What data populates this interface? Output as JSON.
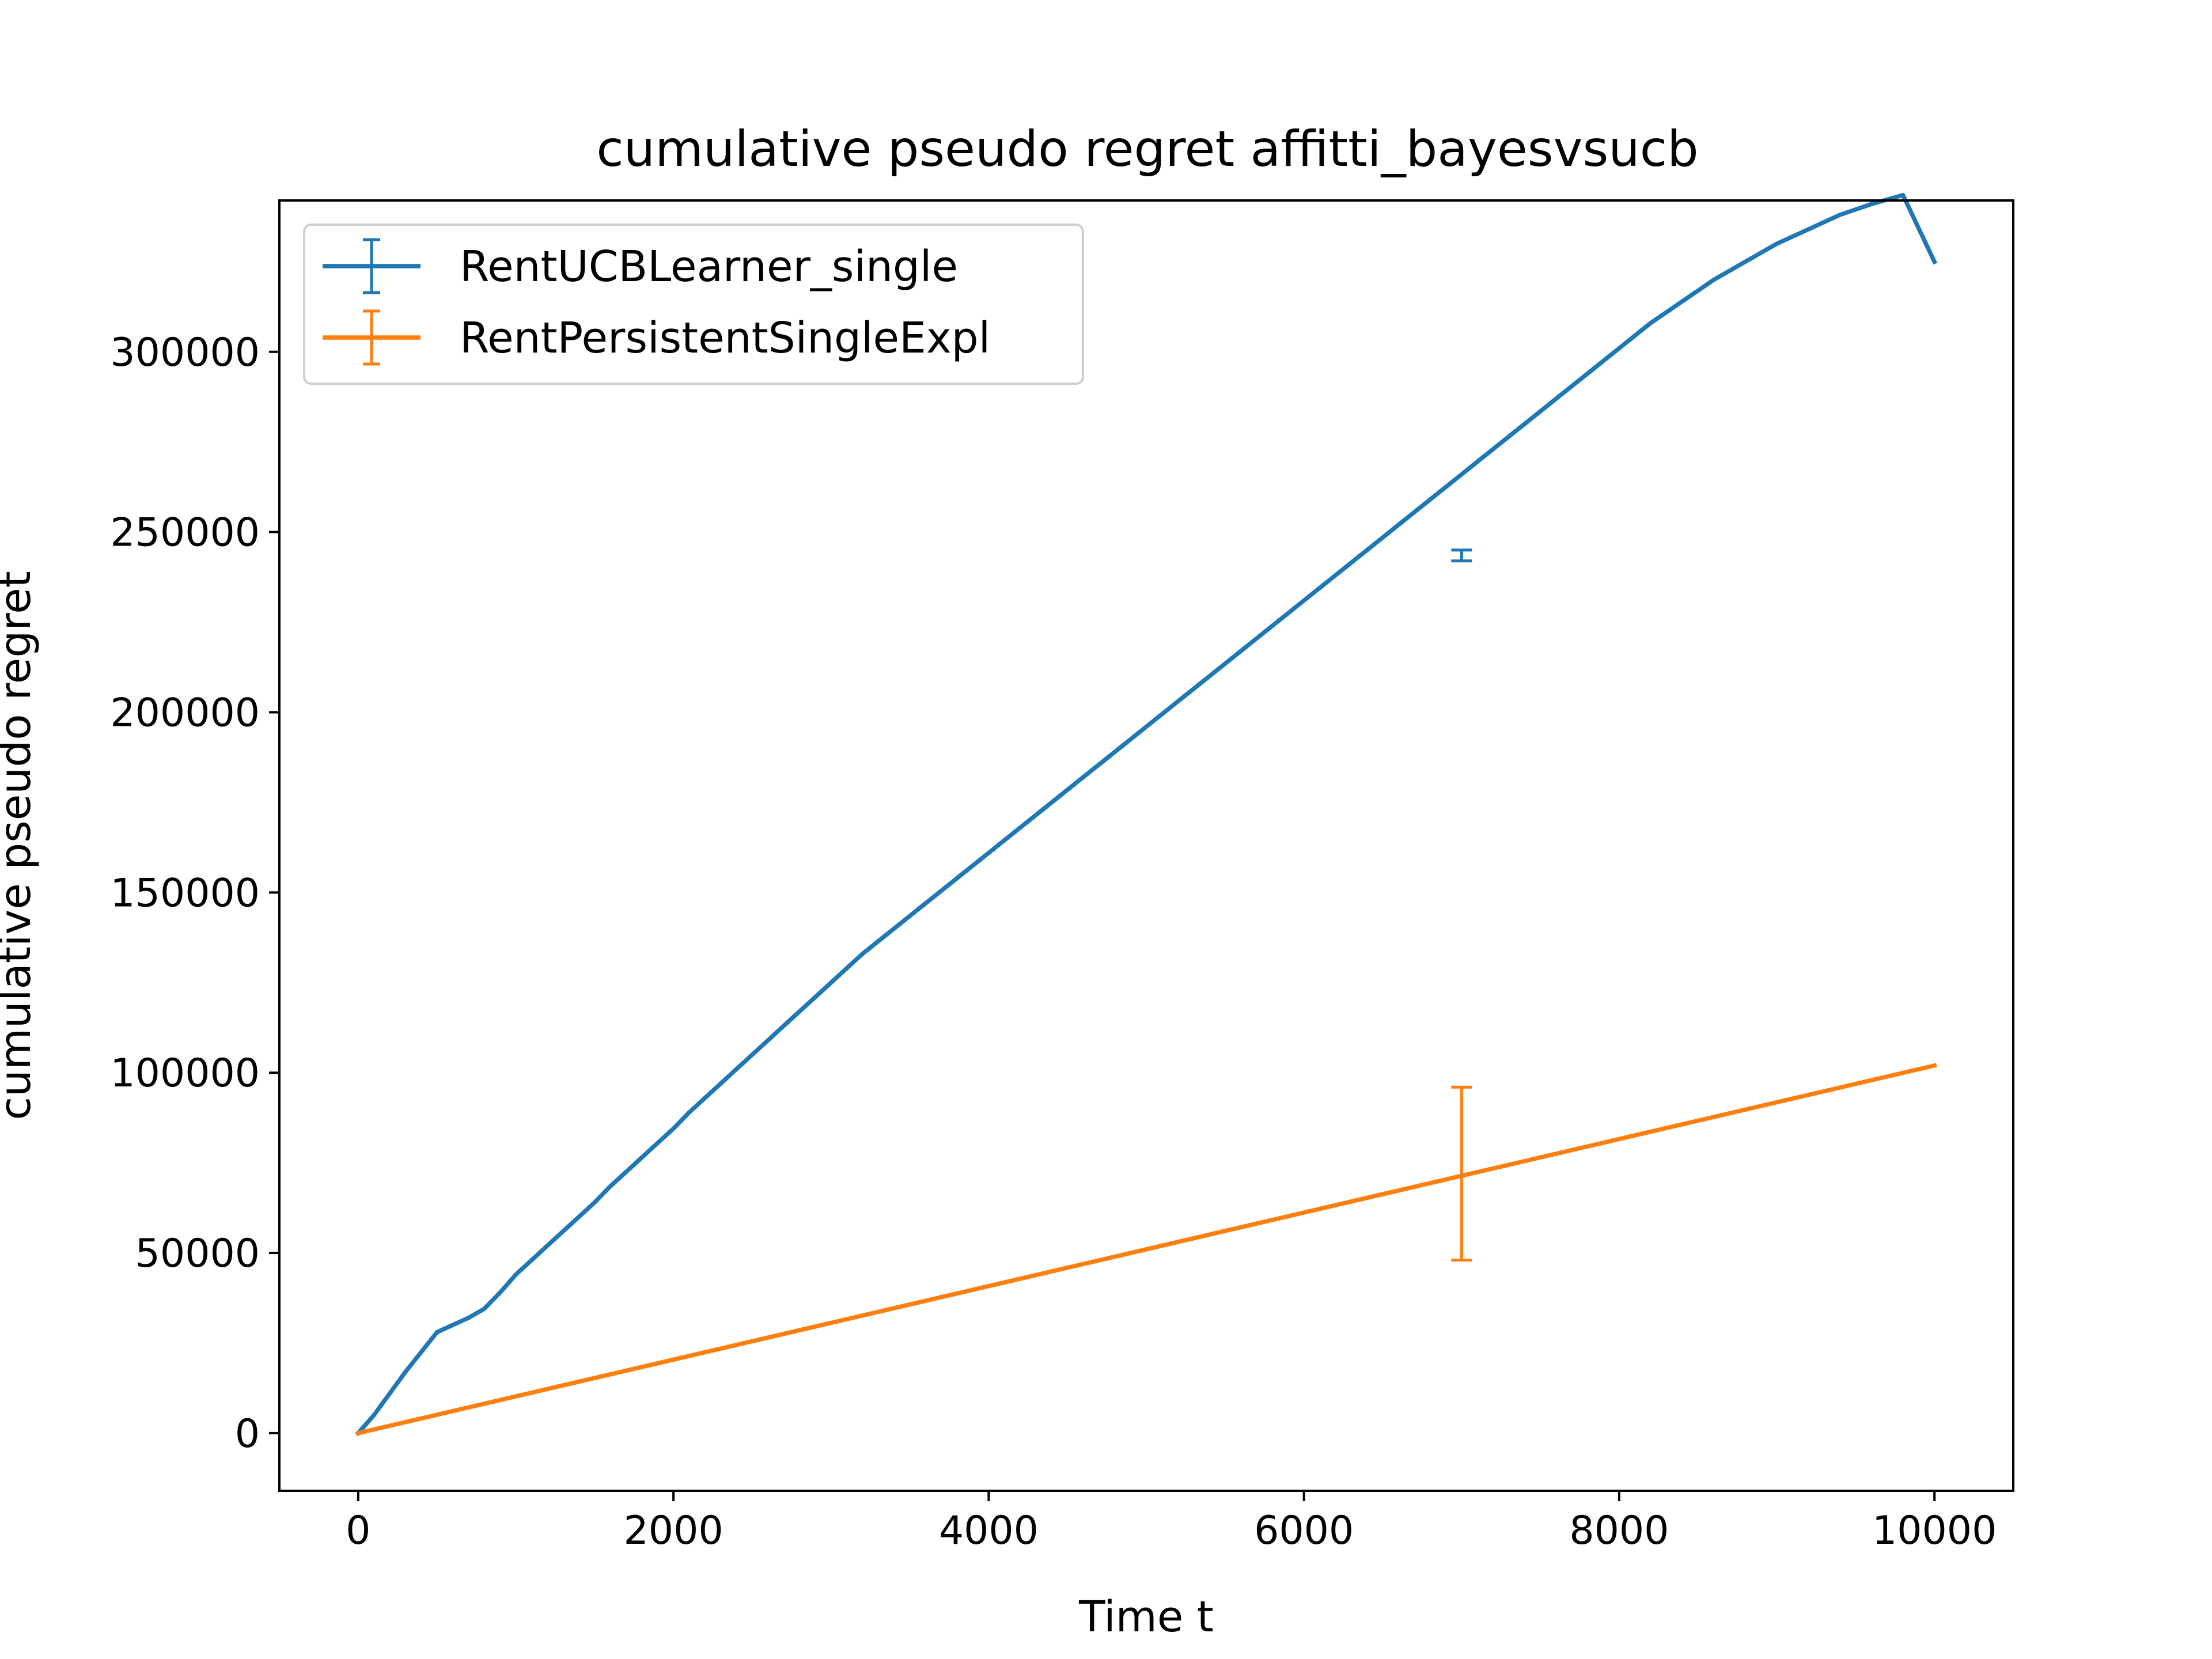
{
  "chart_data": {
    "type": "line",
    "title": "cumulative pseudo regret affitti_bayesvsucb",
    "xlabel": "Time t",
    "ylabel": "cumulative pseudo regret",
    "xlim": [
      -500,
      10500
    ],
    "ylim": [
      -16000,
      342000
    ],
    "xticks": [
      0,
      2000,
      4000,
      6000,
      8000,
      10000
    ],
    "xtick_labels": [
      "0",
      "2000",
      "4000",
      "6000",
      "8000",
      "10000"
    ],
    "yticks": [
      0,
      50000,
      100000,
      150000,
      200000,
      250000,
      300000
    ],
    "ytick_labels": [
      "0",
      "50000",
      "100000",
      "150000",
      "200000",
      "250000",
      "300000"
    ],
    "grid": false,
    "legend_position": "top-left",
    "series": [
      {
        "name": "RentUCBLearner_single",
        "color": "#1f77b4",
        "x": [
          0,
          100,
          200,
          300,
          400,
          500,
          600,
          650,
          700,
          800,
          900,
          1000,
          1100,
          1200,
          1300,
          1400,
          1500,
          1600,
          1700,
          1800,
          1900,
          2000,
          2100,
          2200,
          2300,
          2400,
          2500,
          2600,
          2700,
          2800,
          2900,
          3000,
          3100,
          3200,
          3300,
          3400,
          3500,
          3600,
          3700,
          3800,
          3900,
          4000,
          4200,
          4400,
          4600,
          4800,
          5000,
          5200,
          5400,
          5600,
          5800,
          6000,
          6200,
          6400,
          6600,
          6800,
          7000,
          7200,
          7400,
          7600,
          7800,
          8000,
          8200,
          8400,
          8600,
          8800,
          9000,
          9200,
          9400,
          9600,
          9800,
          10000
        ],
        "y": [
          0,
          5000,
          11000,
          17000,
          22500,
          28000,
          30000,
          31000,
          32000,
          34500,
          39000,
          44000,
          48000,
          52000,
          56000,
          60000,
          64000,
          68500,
          72500,
          76500,
          80500,
          84500,
          89000,
          93000,
          97000,
          101000,
          105000,
          109000,
          113000,
          117000,
          121000,
          125000,
          129000,
          133000,
          136500,
          140000,
          143500,
          147000,
          150500,
          154000,
          157500,
          161000,
          168000,
          175000,
          182000,
          189000,
          196000,
          203000,
          210000,
          217000,
          224000,
          231000,
          238000,
          245000,
          252000,
          259000,
          266000,
          273000,
          280000,
          287000,
          294000,
          301000,
          308000,
          314000,
          320000,
          325000,
          330000,
          334000,
          338000,
          341000,
          343500,
          325000
        ],
        "error_bars": [
          {
            "x": 7000,
            "y": 243500,
            "err": 1500
          }
        ]
      },
      {
        "name": "RentPersistentSingleExpl",
        "color": "#ff7f0e",
        "x": [
          0,
          10000
        ],
        "y": [
          0,
          102000
        ],
        "error_bars": [
          {
            "x": 7000,
            "y": 72000,
            "err": 24000
          }
        ]
      }
    ]
  }
}
